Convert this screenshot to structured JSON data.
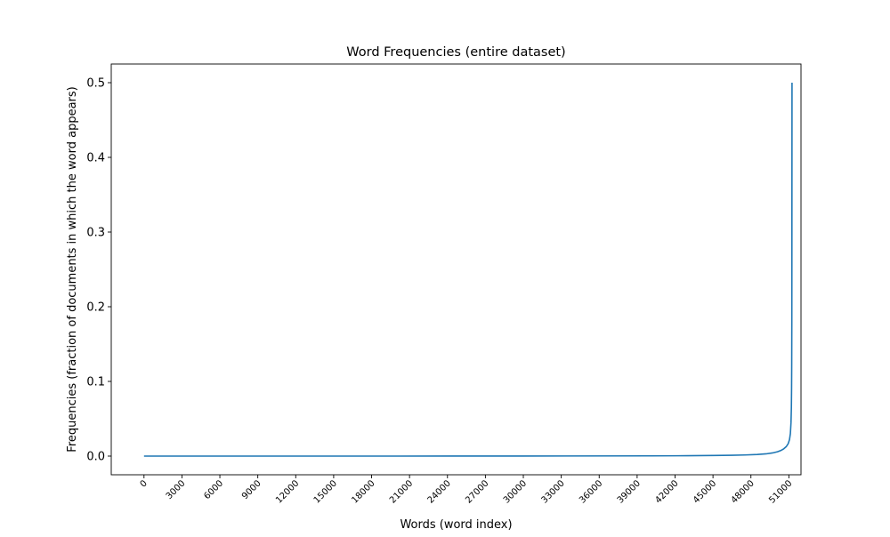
{
  "chart_data": {
    "type": "line",
    "title": "Word Frequencies (entire dataset)",
    "xlabel": "Words (word index)",
    "ylabel": "Frequencies (fraction of documents in which the word appears)",
    "xlim": [
      -2590,
      51960
    ],
    "ylim": [
      -0.025,
      0.525
    ],
    "xticks": [
      0,
      3000,
      6000,
      9000,
      12000,
      15000,
      18000,
      21000,
      24000,
      27000,
      30000,
      33000,
      36000,
      39000,
      42000,
      45000,
      48000,
      51000
    ],
    "xtick_labels": [
      "0",
      "3000",
      "6000",
      "9000",
      "12000",
      "15000",
      "18000",
      "21000",
      "24000",
      "27000",
      "30000",
      "33000",
      "36000",
      "39000",
      "42000",
      "45000",
      "48000",
      "51000"
    ],
    "yticks": [
      0.0,
      0.1,
      0.2,
      0.3,
      0.4,
      0.5
    ],
    "ytick_labels": [
      "0.0",
      "0.1",
      "0.2",
      "0.3",
      "0.4",
      "0.5"
    ],
    "grid": false,
    "series": [
      {
        "color": "#1f77b4",
        "x": [
          0,
          10000,
          20000,
          30000,
          40000,
          43000,
          45000,
          46500,
          47500,
          48500,
          49200,
          49700,
          50100,
          50400,
          50600,
          50800,
          50950,
          51050,
          51120,
          51170,
          51200,
          51215,
          51225,
          51235,
          51240,
          51245,
          51250
        ],
        "y": [
          0.0,
          0.0,
          0.0,
          0.0001,
          0.0003,
          0.0005,
          0.0008,
          0.0011,
          0.0015,
          0.0022,
          0.003,
          0.0042,
          0.0058,
          0.0078,
          0.0098,
          0.0128,
          0.0168,
          0.022,
          0.03,
          0.045,
          0.065,
          0.09,
          0.12,
          0.18,
          0.26,
          0.38,
          0.5
        ]
      }
    ]
  }
}
